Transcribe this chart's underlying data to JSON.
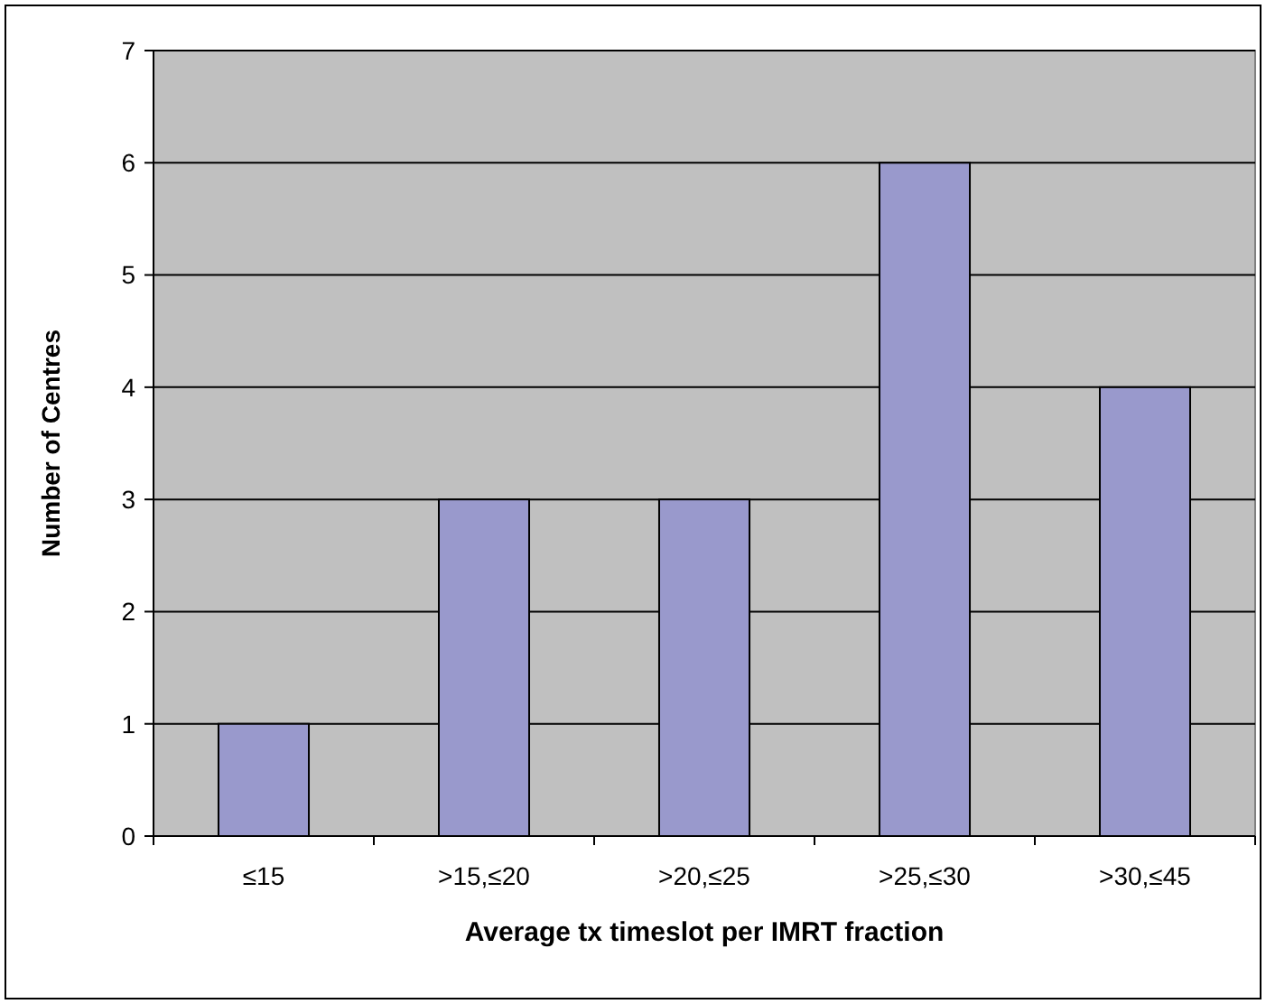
{
  "chart_data": {
    "type": "bar",
    "xlabel": "Average tx timeslot per IMRT fraction",
    "ylabel": "Number of Centres",
    "categories": [
      "≤15",
      ">15,≤20",
      ">20,≤25",
      ">25,≤30",
      ">30,≤45"
    ],
    "values": [
      1,
      3,
      3,
      6,
      4
    ],
    "color": "#9999cc",
    "ylim": [
      0,
      7
    ],
    "yticks": [
      0,
      1,
      2,
      3,
      4,
      5,
      6,
      7
    ],
    "grid": "y"
  }
}
